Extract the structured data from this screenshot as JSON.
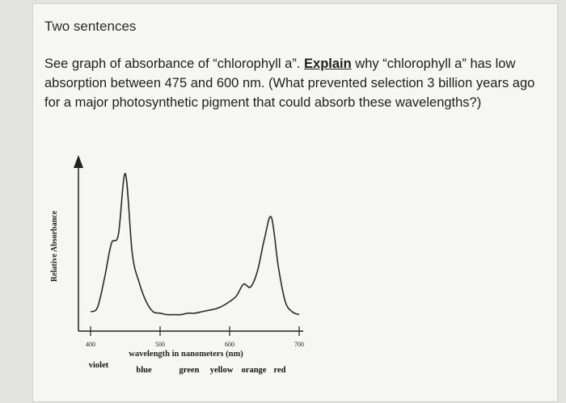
{
  "heading": "Two sentences",
  "question": {
    "part1": "See graph of absorbance of “chlorophyll a”. ",
    "emphasis": "Explain",
    "part2": " why “chlorophyll a” has low absorption between 475 and 600 nm. (What prevented selection 3 billion years ago for a major photosynthetic pigment that could absorb these wavelengths?)"
  },
  "chart_data": {
    "type": "line",
    "xlabel": "wavelength in nanometers (nm)",
    "ylabel": "Relative Absorbance",
    "xlim": [
      400,
      700
    ],
    "ticks": [
      "400",
      "500",
      "600",
      "700"
    ],
    "color_bands": [
      "violet",
      "blue",
      "green",
      "yellow",
      "orange",
      "red"
    ],
    "series": [
      {
        "x": [
          400,
          410,
          420,
          430,
          440,
          450,
          460,
          470,
          480,
          490,
          500,
          510,
          520,
          530,
          540,
          550,
          560,
          570,
          580,
          590,
          600,
          610,
          620,
          630,
          640,
          650,
          660,
          670,
          680,
          690,
          700
        ],
        "y": [
          0.05,
          0.08,
          0.28,
          0.52,
          0.58,
          1.0,
          0.45,
          0.25,
          0.12,
          0.05,
          0.04,
          0.03,
          0.03,
          0.03,
          0.04,
          0.04,
          0.05,
          0.06,
          0.07,
          0.09,
          0.12,
          0.16,
          0.24,
          0.22,
          0.33,
          0.55,
          0.7,
          0.36,
          0.12,
          0.05,
          0.03
        ]
      }
    ]
  }
}
